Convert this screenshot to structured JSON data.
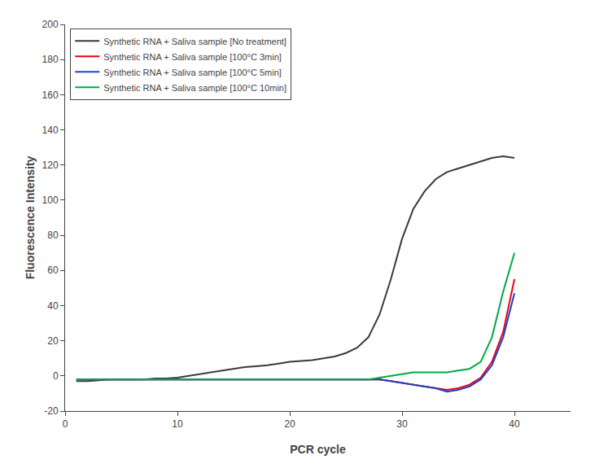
{
  "chart_data": {
    "type": "line",
    "xlabel": "PCR cycle",
    "ylabel": "Fluorescence Intensity",
    "xlim": [
      0,
      45
    ],
    "ylim": [
      -20,
      200
    ],
    "xticks": [
      0,
      10,
      20,
      30,
      40
    ],
    "yticks": [
      -20,
      0,
      20,
      40,
      60,
      80,
      100,
      120,
      140,
      160,
      180,
      200
    ],
    "grid": false,
    "legend": "upper left",
    "x": [
      1,
      2,
      3,
      4,
      5,
      6,
      7,
      8,
      9,
      10,
      11,
      12,
      13,
      14,
      15,
      16,
      17,
      18,
      19,
      20,
      21,
      22,
      23,
      24,
      25,
      26,
      27,
      28,
      29,
      30,
      31,
      32,
      33,
      34,
      35,
      36,
      37,
      38,
      39,
      40
    ],
    "series": [
      {
        "name": "Synthetic RNA + Saliva sample [No treatment]",
        "color": "#3a3a3a",
        "values": [
          -3,
          -3,
          -2.5,
          -2,
          -2,
          -2,
          -2,
          -1.5,
          -1.5,
          -1,
          0,
          1,
          2,
          3,
          4,
          5,
          5.5,
          6,
          7,
          8,
          8.5,
          9,
          10,
          11,
          13,
          16,
          22,
          35,
          55,
          78,
          95,
          105,
          112,
          116,
          118,
          120,
          122,
          124,
          125,
          124
        ]
      },
      {
        "name": "Synthetic RNA + Saliva sample [100°C 3min]",
        "color": "#e8001c",
        "values": [
          -2,
          -2,
          -2,
          -2,
          -2,
          -2,
          -2,
          -2,
          -2,
          -2,
          -2,
          -2,
          -2,
          -2,
          -2,
          -2,
          -2,
          -2,
          -2,
          -2,
          -2,
          -2,
          -2,
          -2,
          -2,
          -2,
          -2,
          -2,
          -3,
          -4,
          -5,
          -6,
          -7,
          -8,
          -7,
          -5,
          -1,
          8,
          25,
          55
        ]
      },
      {
        "name": "Synthetic RNA + Saliva sample [100°C 5min]",
        "color": "#1e40c4",
        "values": [
          -2,
          -2,
          -2,
          -2,
          -2,
          -2,
          -2,
          -2,
          -2,
          -2,
          -2,
          -2,
          -2,
          -2,
          -2,
          -2,
          -2,
          -2,
          -2,
          -2,
          -2,
          -2,
          -2,
          -2,
          -2,
          -2,
          -2,
          -2,
          -3,
          -4,
          -5,
          -6,
          -7,
          -9,
          -8,
          -6,
          -2,
          6,
          22,
          47
        ]
      },
      {
        "name": "Synthetic RNA + Saliva sample [100°C 10min]",
        "color": "#00aa44",
        "values": [
          -2,
          -2,
          -2,
          -2,
          -2,
          -2,
          -2,
          -2,
          -2,
          -2,
          -2,
          -2,
          -2,
          -2,
          -2,
          -2,
          -2,
          -2,
          -2,
          -2,
          -2,
          -2,
          -2,
          -2,
          -2,
          -2,
          -2,
          -1,
          0,
          1,
          2,
          2,
          2,
          2,
          3,
          4,
          8,
          22,
          48,
          70
        ]
      }
    ]
  }
}
